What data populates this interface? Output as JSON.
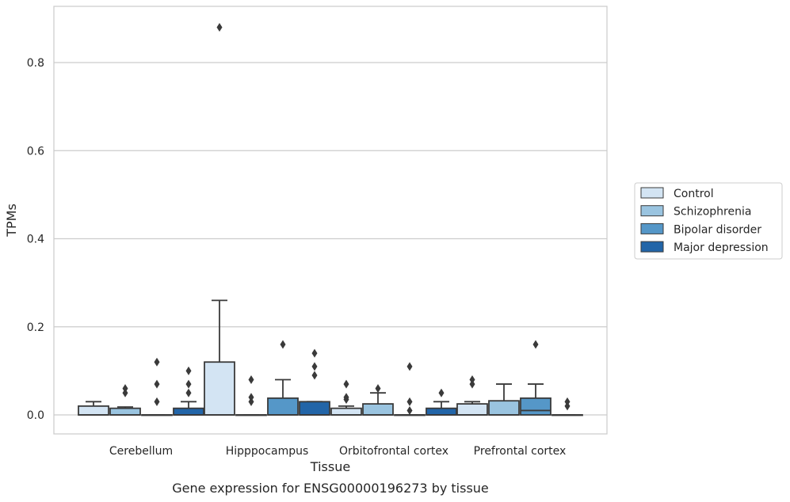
{
  "chart_data": {
    "type": "box",
    "title": "Gene expression for ENSG00000196273 by tissue",
    "xlabel": "Tissue",
    "ylabel": "TPMs",
    "ylim": [
      -0.043,
      0.93
    ],
    "yticks": [
      0.0,
      0.2,
      0.4,
      0.6,
      0.8
    ],
    "ytick_labels": [
      "0.0",
      "0.2",
      "0.4",
      "0.6",
      "0.8"
    ],
    "grid": "horizontal",
    "legend_position": "right",
    "categories": [
      "Cerebellum",
      "Hipppocampus",
      "Orbitofrontal cortex",
      "Prefrontal cortex"
    ],
    "series": [
      {
        "name": "Control",
        "color": "#d3e4f3",
        "boxes": [
          {
            "q1": 0.0,
            "median": 0.0,
            "q3": 0.02,
            "whisker_low": 0.0,
            "whisker_high": 0.03,
            "outliers": []
          },
          {
            "q1": 0.0,
            "median": 0.0,
            "q3": 0.12,
            "whisker_low": 0.0,
            "whisker_high": 0.26,
            "outliers": [
              0.88
            ]
          },
          {
            "q1": 0.0,
            "median": 0.0,
            "q3": 0.015,
            "whisker_low": 0.0,
            "whisker_high": 0.02,
            "outliers": [
              0.035,
              0.04,
              0.07
            ]
          },
          {
            "q1": 0.0,
            "median": 0.0,
            "q3": 0.025,
            "whisker_low": 0.0,
            "whisker_high": 0.03,
            "outliers": [
              0.07,
              0.08
            ]
          }
        ]
      },
      {
        "name": "Schizophrenia",
        "color": "#9ac4e0",
        "boxes": [
          {
            "q1": 0.0,
            "median": 0.0,
            "q3": 0.015,
            "whisker_low": 0.0,
            "whisker_high": 0.018,
            "outliers": [
              0.05,
              0.06
            ]
          },
          {
            "q1": 0.0,
            "median": 0.0,
            "q3": 0.0,
            "whisker_low": 0.0,
            "whisker_high": 0.0,
            "outliers": [
              0.03,
              0.04,
              0.08
            ]
          },
          {
            "q1": 0.0,
            "median": 0.0,
            "q3": 0.025,
            "whisker_low": 0.0,
            "whisker_high": 0.05,
            "outliers": [
              0.06
            ]
          },
          {
            "q1": 0.0,
            "median": 0.0,
            "q3": 0.032,
            "whisker_low": 0.0,
            "whisker_high": 0.07,
            "outliers": []
          }
        ]
      },
      {
        "name": "Bipolar disorder",
        "color": "#5597c8",
        "boxes": [
          {
            "q1": 0.0,
            "median": 0.0,
            "q3": 0.0,
            "whisker_low": 0.0,
            "whisker_high": 0.0,
            "outliers": [
              0.03,
              0.07,
              0.12
            ]
          },
          {
            "q1": 0.0,
            "median": 0.0,
            "q3": 0.038,
            "whisker_low": 0.0,
            "whisker_high": 0.08,
            "outliers": [
              0.16
            ]
          },
          {
            "q1": 0.0,
            "median": 0.0,
            "q3": 0.0,
            "whisker_low": 0.0,
            "whisker_high": 0.0,
            "outliers": [
              0.01,
              0.03,
              0.11
            ]
          },
          {
            "q1": 0.0,
            "median": 0.01,
            "q3": 0.038,
            "whisker_low": 0.0,
            "whisker_high": 0.07,
            "outliers": [
              0.16
            ]
          }
        ]
      },
      {
        "name": "Major depression",
        "color": "#2265a8",
        "boxes": [
          {
            "q1": 0.0,
            "median": 0.0,
            "q3": 0.015,
            "whisker_low": 0.0,
            "whisker_high": 0.03,
            "outliers": [
              0.05,
              0.07,
              0.1
            ]
          },
          {
            "q1": 0.0,
            "median": 0.0,
            "q3": 0.03,
            "whisker_low": 0.0,
            "whisker_high": 0.03,
            "outliers": [
              0.09,
              0.11,
              0.14
            ]
          },
          {
            "q1": 0.0,
            "median": 0.0,
            "q3": 0.015,
            "whisker_low": 0.0,
            "whisker_high": 0.03,
            "outliers": [
              0.05
            ]
          },
          {
            "q1": 0.0,
            "median": 0.0,
            "q3": 0.0,
            "whisker_low": 0.0,
            "whisker_high": 0.0,
            "outliers": [
              0.02,
              0.03
            ]
          }
        ]
      }
    ]
  }
}
